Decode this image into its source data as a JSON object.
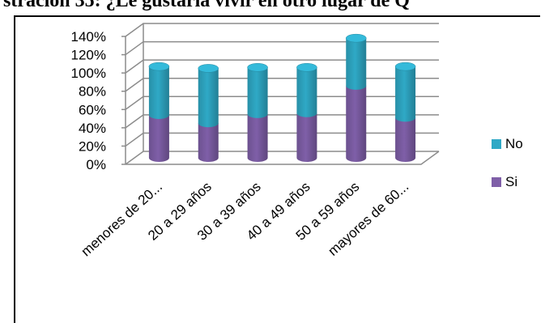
{
  "header": {
    "text": "stración 35: ¿Le gustaría vivir en otro lugar de Q"
  },
  "colors": {
    "si": "#7f5fa8",
    "no": "#2fa9c6",
    "grid": "#8c8c8c"
  },
  "chart_data": {
    "type": "bar",
    "stacked": true,
    "title": "",
    "xlabel": "",
    "ylabel": "",
    "ylim": [
      0,
      140
    ],
    "y_ticks": [
      "0%",
      "20%",
      "40%",
      "60%",
      "80%",
      "100%",
      "120%",
      "140%"
    ],
    "categories": [
      "menores de 20...",
      "20 a 29 años",
      "30 a 39 años",
      "40 a 49 años",
      "50 a 59 años",
      "mayores de 60..."
    ],
    "series": [
      {
        "name": "Si",
        "values": [
          47,
          38,
          48,
          49,
          79,
          44
        ]
      },
      {
        "name": "No",
        "values": [
          53,
          60,
          51,
          50,
          52,
          56
        ]
      }
    ],
    "legend": {
      "position": "right",
      "entries": [
        "No",
        "Si"
      ]
    },
    "grid": true
  }
}
